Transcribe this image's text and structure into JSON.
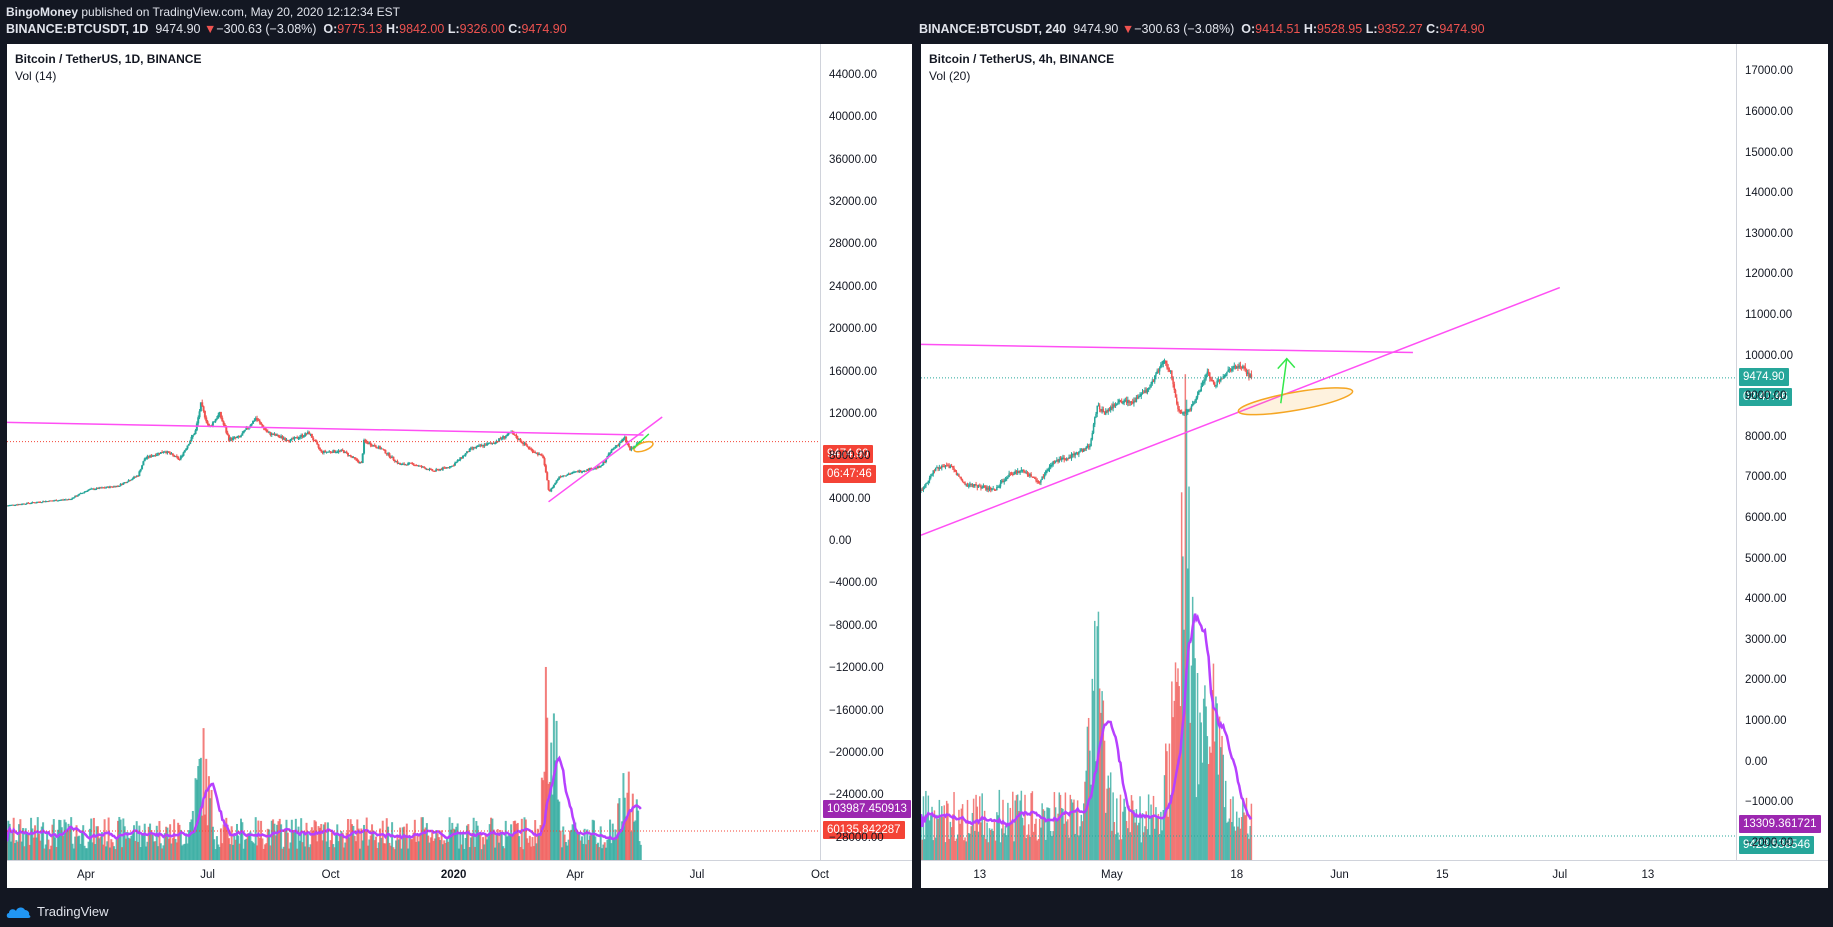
{
  "header": {
    "author": "BingoMoney",
    "published": "published on TradingView.com, May 20, 2020 12:12:34 EST"
  },
  "footer": {
    "brand": "TradingView"
  },
  "colors": {
    "up": "#26a69a",
    "down": "#ef5350",
    "trendline": "#ff4ff4",
    "volume_ma": "#b640ff",
    "price_tag": "#f44336",
    "price_tag_4h": "#26a69a",
    "ellipse": "#f5a623",
    "arrow": "#33e84a",
    "vol_tag": "#9c27b0"
  },
  "panes": [
    {
      "symbol_line": {
        "symbol": "BINANCE:BTCUSDT, 1D",
        "last": "9474.90",
        "arrow": "▼",
        "change": "−300.63 (−3.08%)",
        "o": "9775.13",
        "h": "9842.00",
        "l": "9326.00",
        "c": "9474.90"
      },
      "title": "Bitcoin / TetherUS, 1D, BINANCE",
      "vol_label": "Vol (14)",
      "price_tag": "9474.90",
      "countdown": "06:47:46",
      "vol_ma_tag": "103987.450913",
      "vol_tag": "60135.842287",
      "y_ticks": [
        "44000.00",
        "40000.00",
        "36000.00",
        "32000.00",
        "28000.00",
        "24000.00",
        "20000.00",
        "16000.00",
        "12000.00",
        "8000.00",
        "4000.00",
        "0.00",
        "−4000.00",
        "−8000.00",
        "−12000.00",
        "−16000.00",
        "−20000.00",
        "−24000.00",
        "−28000.00"
      ],
      "x_ticks": [
        "Apr",
        "Jul",
        "Oct",
        "2020",
        "Apr",
        "Jul",
        "Oct"
      ]
    },
    {
      "symbol_line": {
        "symbol": "BINANCE:BTCUSDT, 240",
        "last": "9474.90",
        "arrow": "▼",
        "change": "−300.63 (−3.08%)",
        "o": "9414.51",
        "h": "9528.95",
        "l": "9352.27",
        "c": "9474.90"
      },
      "title": "Bitcoin / TetherUS, 4h, BINANCE",
      "vol_label": "Vol (20)",
      "price_tag": "9474.90",
      "countdown": "02:47:46",
      "vol_ma_tag": "13309.361721",
      "vol_tag": "9423.538546",
      "y_ticks": [
        "17000.00",
        "16000.00",
        "15000.00",
        "14000.00",
        "13000.00",
        "12000.00",
        "11000.00",
        "10000.00",
        "9000.00",
        "8000.00",
        "7000.00",
        "6000.00",
        "5000.00",
        "4000.00",
        "3000.00",
        "2000.00",
        "1000.00",
        "0.00",
        "−1000.00",
        "−2000.00"
      ],
      "x_ticks": [
        "13",
        "May",
        "18",
        "Jun",
        "15",
        "Jul",
        "13"
      ]
    }
  ],
  "chart_data": [
    {
      "type": "candlestick",
      "title": "Bitcoin / TetherUS, 1D, BINANCE",
      "ylim": [
        -30000,
        47000
      ],
      "x_range": [
        "2019-02",
        "2020-10"
      ],
      "last_price": 9474.9,
      "close_path": [
        [
          "2019-02-01",
          3450
        ],
        [
          "2019-03-01",
          3850
        ],
        [
          "2019-03-20",
          4050
        ],
        [
          "2019-04-03",
          4950
        ],
        [
          "2019-04-25",
          5300
        ],
        [
          "2019-05-10",
          6300
        ],
        [
          "2019-05-15",
          7900
        ],
        [
          "2019-05-30",
          8600
        ],
        [
          "2019-06-10",
          7800
        ],
        [
          "2019-06-22",
          10500
        ],
        [
          "2019-06-26",
          13000
        ],
        [
          "2019-07-02",
          10800
        ],
        [
          "2019-07-10",
          12100
        ],
        [
          "2019-07-17",
          9700
        ],
        [
          "2019-07-25",
          9900
        ],
        [
          "2019-08-06",
          11700
        ],
        [
          "2019-08-15",
          10300
        ],
        [
          "2019-09-01",
          9600
        ],
        [
          "2019-09-15",
          10300
        ],
        [
          "2019-09-24",
          8500
        ],
        [
          "2019-10-10",
          8600
        ],
        [
          "2019-10-24",
          7400
        ],
        [
          "2019-10-26",
          9500
        ],
        [
          "2019-11-08",
          8800
        ],
        [
          "2019-11-22",
          7300
        ],
        [
          "2019-12-01",
          7400
        ],
        [
          "2019-12-17",
          6700
        ],
        [
          "2019-12-31",
          7200
        ],
        [
          "2020-01-14",
          8800
        ],
        [
          "2020-01-31",
          9400
        ],
        [
          "2020-02-13",
          10300
        ],
        [
          "2020-02-27",
          8800
        ],
        [
          "2020-03-08",
          8000
        ],
        [
          "2020-03-12",
          5000
        ],
        [
          "2020-03-13",
          4800
        ],
        [
          "2020-03-20",
          6200
        ],
        [
          "2020-04-01",
          6600
        ],
        [
          "2020-04-20",
          7100
        ],
        [
          "2020-04-29",
          8800
        ],
        [
          "2020-05-08",
          9800
        ],
        [
          "2020-05-12",
          8700
        ],
        [
          "2020-05-20",
          9475
        ]
      ],
      "trendlines": [
        {
          "from": [
            "2019-02-01",
            11300
          ],
          "to": [
            "2020-05-22",
            10100
          ]
        },
        {
          "from": [
            "2020-03-12",
            3800
          ],
          "to": [
            "2020-06-05",
            11800
          ]
        }
      ],
      "volume_ma_last": 103987.450913,
      "volume_last": 60135.842287
    },
    {
      "type": "candlestick",
      "title": "Bitcoin / TetherUS, 4h, BINANCE",
      "ylim": [
        -2400,
        17700
      ],
      "x_range": [
        "2020-04-05",
        "2020-07-25"
      ],
      "last_price": 9474.9,
      "close_path": [
        [
          "2020-04-05",
          6700
        ],
        [
          "2020-04-07",
          7250
        ],
        [
          "2020-04-09",
          7300
        ],
        [
          "2020-04-11",
          6850
        ],
        [
          "2020-04-13",
          6800
        ],
        [
          "2020-04-15",
          6700
        ],
        [
          "2020-04-17",
          7100
        ],
        [
          "2020-04-19",
          7200
        ],
        [
          "2020-04-21",
          6900
        ],
        [
          "2020-04-23",
          7400
        ],
        [
          "2020-04-25",
          7500
        ],
        [
          "2020-04-27",
          7700
        ],
        [
          "2020-04-28",
          7800
        ],
        [
          "2020-04-29",
          8800
        ],
        [
          "2020-04-30",
          8600
        ],
        [
          "2020-05-02",
          8900
        ],
        [
          "2020-05-04",
          8900
        ],
        [
          "2020-05-06",
          9200
        ],
        [
          "2020-05-08",
          9900
        ],
        [
          "2020-05-09",
          9600
        ],
        [
          "2020-05-10",
          8700
        ],
        [
          "2020-05-11",
          8600
        ],
        [
          "2020-05-12",
          8800
        ],
        [
          "2020-05-14",
          9600
        ],
        [
          "2020-05-15",
          9300
        ],
        [
          "2020-05-17",
          9700
        ],
        [
          "2020-05-18",
          9750
        ],
        [
          "2020-05-19",
          9700
        ],
        [
          "2020-05-20",
          9475
        ]
      ],
      "trendlines": [
        {
          "from": [
            "2020-04-05",
            10300
          ],
          "to": [
            "2020-06-11",
            10100
          ]
        },
        {
          "from": [
            "2020-04-05",
            5600
          ],
          "to": [
            "2020-07-01",
            11700
          ]
        }
      ],
      "volume_ma_last": 13309.361721,
      "volume_last": 9423.538546
    }
  ]
}
